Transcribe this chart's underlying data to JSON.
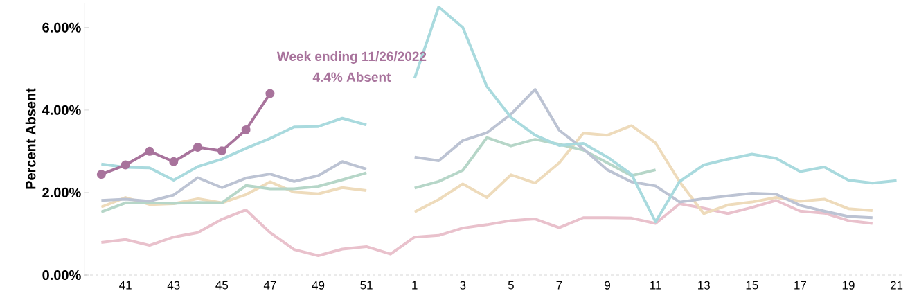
{
  "chart_data": {
    "type": "line",
    "ylabel": "Percent Absent",
    "categories": [
      null,
      "41",
      null,
      "43",
      null,
      "45",
      null,
      "47",
      null,
      "49",
      null,
      "51",
      null,
      "1",
      null,
      "3",
      null,
      "5",
      null,
      "7",
      null,
      "9",
      null,
      "11",
      null,
      "13",
      null,
      "15",
      null,
      "17",
      null,
      "19",
      null,
      "21"
    ],
    "yticks": [
      {
        "value": 0,
        "label": "0.00%"
      },
      {
        "value": 2,
        "label": "2.00%"
      },
      {
        "value": 4,
        "label": "4.00%"
      },
      {
        "value": 6,
        "label": "6.00%"
      }
    ],
    "ylim": [
      0,
      6.6
    ],
    "annotations": [
      "Week ending 11/26/2022",
      "4.4% Absent"
    ],
    "series": [
      {
        "color": "#a8739c",
        "marker": "circle",
        "values": [
          2.44,
          2.67,
          3.0,
          2.75,
          3.1,
          3.01,
          3.52,
          4.4,
          null,
          null,
          null,
          null,
          null,
          null,
          null,
          null,
          null,
          null,
          null,
          null,
          null,
          null,
          null,
          null,
          null,
          null,
          null,
          null,
          null,
          null,
          null,
          null,
          null,
          null
        ]
      },
      {
        "color": "#a9dade",
        "values": [
          2.69,
          2.61,
          2.6,
          2.3,
          2.63,
          2.81,
          3.07,
          3.31,
          3.59,
          3.6,
          3.8,
          3.64,
          null,
          4.77,
          6.5,
          6.0,
          4.57,
          3.82,
          3.39,
          3.14,
          3.19,
          2.86,
          2.44,
          1.29,
          2.27,
          2.67,
          2.81,
          2.93,
          2.83,
          2.51,
          2.62,
          2.3,
          2.23,
          2.29
        ]
      },
      {
        "color": "#bcc3d3",
        "values": [
          1.81,
          1.84,
          1.79,
          1.94,
          2.36,
          2.12,
          2.35,
          2.45,
          2.27,
          2.41,
          2.75,
          2.57,
          null,
          2.86,
          2.77,
          3.26,
          3.45,
          3.9,
          4.5,
          3.51,
          3.06,
          2.55,
          2.26,
          2.16,
          1.77,
          1.85,
          1.92,
          1.98,
          1.96,
          1.69,
          1.55,
          1.42,
          1.39,
          null
        ]
      },
      {
        "color": "#b6d6c8",
        "values": [
          1.53,
          1.75,
          1.75,
          1.74,
          1.76,
          1.75,
          2.17,
          2.09,
          2.09,
          2.15,
          2.31,
          2.48,
          null,
          2.11,
          2.27,
          2.54,
          3.33,
          3.13,
          3.29,
          3.17,
          3.03,
          2.72,
          2.41,
          2.55,
          null,
          null,
          null,
          null,
          null,
          null,
          null,
          null,
          null,
          null
        ]
      },
      {
        "color": "#eedbbb",
        "values": [
          1.65,
          1.88,
          1.71,
          1.73,
          1.85,
          1.75,
          1.95,
          2.26,
          2.01,
          1.97,
          2.12,
          2.05,
          null,
          1.53,
          1.83,
          2.21,
          1.88,
          2.43,
          2.23,
          2.72,
          3.44,
          3.39,
          3.62,
          3.2,
          2.26,
          1.49,
          1.7,
          1.77,
          1.88,
          1.79,
          1.84,
          1.61,
          1.56,
          null
        ]
      },
      {
        "color": "#e9c1cc",
        "values": [
          0.79,
          0.86,
          0.72,
          0.92,
          1.03,
          1.35,
          1.58,
          1.03,
          0.62,
          0.47,
          0.63,
          0.69,
          0.51,
          0.92,
          0.96,
          1.14,
          1.22,
          1.32,
          1.36,
          1.15,
          1.39,
          1.39,
          1.38,
          1.25,
          1.73,
          1.62,
          1.49,
          1.64,
          1.81,
          1.55,
          1.5,
          1.32,
          1.25,
          null
        ]
      }
    ]
  }
}
